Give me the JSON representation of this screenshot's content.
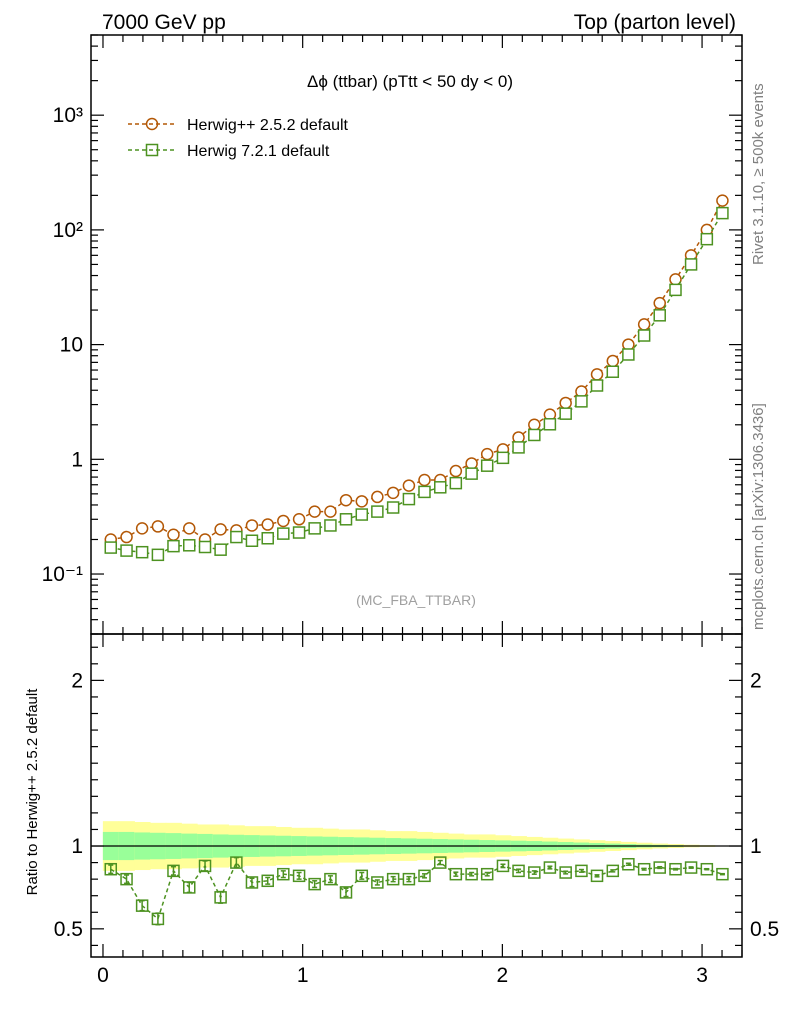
{
  "header": {
    "left": "7000 GeV pp",
    "right": "Top (parton level)"
  },
  "side_labels": {
    "rivet": "Rivet 3.1.10, ≥ 500k events",
    "mcplots": "mcplots.cern.ch [arXiv:1306.3436]"
  },
  "chart_data": [
    {
      "type": "line",
      "panel": "main",
      "title": "Δϕ (ttbar) (pTtt < 50 dy < 0)",
      "watermark": "(MC_FBA_TTBAR)",
      "yscale": "log",
      "xlim": [
        -0.06,
        3.2
      ],
      "ylim": [
        0.03,
        5000
      ],
      "yticks": [
        {
          "value": 0.1,
          "label": "10⁻¹"
        },
        {
          "value": 1,
          "label": "1"
        },
        {
          "value": 10,
          "label": "10"
        },
        {
          "value": 100,
          "label": "10²"
        },
        {
          "value": 1000,
          "label": "10³"
        }
      ],
      "legend_position": "top-left",
      "x": [
        0.039,
        0.118,
        0.196,
        0.275,
        0.353,
        0.432,
        0.511,
        0.589,
        0.668,
        0.746,
        0.825,
        0.903,
        0.982,
        1.06,
        1.139,
        1.217,
        1.296,
        1.374,
        1.453,
        1.532,
        1.61,
        1.689,
        1.767,
        1.846,
        1.924,
        2.003,
        2.081,
        2.16,
        2.238,
        2.317,
        2.396,
        2.474,
        2.553,
        2.631,
        2.71,
        2.788,
        2.867,
        2.945,
        3.024,
        3.102
      ],
      "series": [
        {
          "name": "Herwig++ 2.5.2 default",
          "color": "#b35806",
          "marker": "circle",
          "values": [
            0.2,
            0.21,
            0.25,
            0.26,
            0.22,
            0.25,
            0.2,
            0.245,
            0.24,
            0.265,
            0.27,
            0.29,
            0.3,
            0.35,
            0.35,
            0.44,
            0.43,
            0.47,
            0.51,
            0.59,
            0.66,
            0.66,
            0.79,
            0.92,
            1.11,
            1.22,
            1.55,
            2.0,
            2.45,
            3.1,
            3.9,
            5.5,
            7.2,
            10.0,
            15.0,
            23.0,
            37.0,
            60.0,
            100.0,
            180.0
          ]
        },
        {
          "name": "Herwig 7.2.1 default",
          "color": "#4d9221",
          "marker": "square",
          "values": [
            0.17,
            0.16,
            0.155,
            0.147,
            0.175,
            0.178,
            0.172,
            0.163,
            0.21,
            0.195,
            0.205,
            0.225,
            0.23,
            0.25,
            0.265,
            0.3,
            0.33,
            0.35,
            0.38,
            0.45,
            0.52,
            0.57,
            0.62,
            0.75,
            0.88,
            1.03,
            1.27,
            1.63,
            2.02,
            2.5,
            3.2,
            4.4,
            5.8,
            8.2,
            12.0,
            18.0,
            30.0,
            50.0,
            83.0,
            140.0
          ]
        }
      ]
    },
    {
      "type": "line",
      "panel": "ratio",
      "ylabel": "Ratio to Herwig++ 2.5.2 default",
      "xlim": [
        -0.06,
        3.2
      ],
      "ylim": [
        0.33,
        2.28
      ],
      "xticks": [
        {
          "value": 0,
          "label": "0"
        },
        {
          "value": 1,
          "label": "1"
        },
        {
          "value": 2,
          "label": "2"
        },
        {
          "value": 3,
          "label": "3"
        }
      ],
      "yticks": [
        {
          "value": 0.5,
          "label": "0.5"
        },
        {
          "value": 1,
          "label": "1"
        },
        {
          "value": 2,
          "label": "2"
        }
      ],
      "band_colors": {
        "outer": "#ffff99",
        "inner": "#99ff99"
      },
      "band_outer_halfwidth": [
        0.15,
        0.15,
        0.145,
        0.14,
        0.14,
        0.135,
        0.13,
        0.13,
        0.125,
        0.12,
        0.12,
        0.115,
        0.11,
        0.11,
        0.105,
        0.1,
        0.1,
        0.095,
        0.09,
        0.09,
        0.085,
        0.08,
        0.075,
        0.07,
        0.07,
        0.065,
        0.06,
        0.055,
        0.05,
        0.045,
        0.04,
        0.035,
        0.03,
        0.025,
        0.02,
        0.015,
        0.012,
        0.008,
        0.005,
        0.003
      ],
      "band_inner_halfwidth": [
        0.085,
        0.085,
        0.082,
        0.08,
        0.078,
        0.075,
        0.073,
        0.07,
        0.068,
        0.066,
        0.064,
        0.062,
        0.06,
        0.058,
        0.056,
        0.054,
        0.052,
        0.05,
        0.048,
        0.046,
        0.044,
        0.042,
        0.04,
        0.038,
        0.036,
        0.034,
        0.032,
        0.03,
        0.027,
        0.024,
        0.021,
        0.018,
        0.015,
        0.012,
        0.009,
        0.007,
        0.005,
        0.003,
        0.002,
        0.001
      ],
      "series": [
        {
          "name": "Herwig 7.2.1 default",
          "color": "#4d9221",
          "marker": "square",
          "values": [
            0.86,
            0.8,
            0.64,
            0.56,
            0.85,
            0.75,
            0.88,
            0.69,
            0.9,
            0.78,
            0.79,
            0.83,
            0.82,
            0.77,
            0.8,
            0.72,
            0.82,
            0.78,
            0.8,
            0.8,
            0.82,
            0.9,
            0.83,
            0.83,
            0.83,
            0.88,
            0.85,
            0.84,
            0.87,
            0.84,
            0.85,
            0.82,
            0.85,
            0.89,
            0.86,
            0.87,
            0.86,
            0.87,
            0.86,
            0.83
          ],
          "errors": [
            0.025,
            0.025,
            0.03,
            0.035,
            0.025,
            0.03,
            0.03,
            0.035,
            0.03,
            0.025,
            0.02,
            0.02,
            0.02,
            0.02,
            0.02,
            0.025,
            0.02,
            0.015,
            0.015,
            0.015,
            0.012,
            0.012,
            0.012,
            0.01,
            0.01,
            0.01,
            0.01,
            0.01,
            0.008,
            0.008,
            0.008,
            0.006,
            0.006,
            0.006,
            0.005,
            0.005,
            0.004,
            0.004,
            0.003,
            0.003
          ]
        }
      ]
    }
  ]
}
